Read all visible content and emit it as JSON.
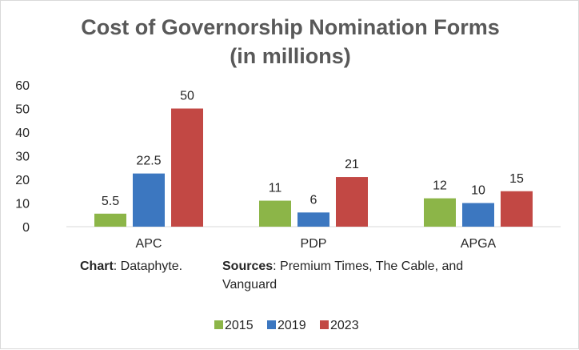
{
  "chart_data": {
    "type": "bar",
    "title_line1": "Cost of Governorship Nomination Forms",
    "title_line2": "(in millions)",
    "categories": [
      "APC",
      "PDP",
      "APGA"
    ],
    "series": [
      {
        "name": "2015",
        "values": [
          5.5,
          11,
          12
        ],
        "labels": [
          "5.5",
          "11",
          "12"
        ],
        "color": "#8cb548"
      },
      {
        "name": "2019",
        "values": [
          22.5,
          6,
          10
        ],
        "labels": [
          "22.5",
          "6",
          "10"
        ],
        "color": "#3c77c0"
      },
      {
        "name": "2023",
        "values": [
          50,
          21,
          15
        ],
        "labels": [
          "50",
          "21",
          "15"
        ],
        "color": "#c24844"
      }
    ],
    "yticks": [
      "0",
      "10",
      "20",
      "30",
      "40",
      "50",
      "60"
    ],
    "ylim": [
      0,
      60
    ],
    "xlabel": "",
    "ylabel": "",
    "legend_position": "bottom-center"
  },
  "notes": {
    "chart_label": "Chart",
    "chart_text": ": Dataphyte.",
    "sources_label": "Sources",
    "sources_text": ": Premium Times, The Cable, and",
    "sources_line2": "Vanguard"
  }
}
